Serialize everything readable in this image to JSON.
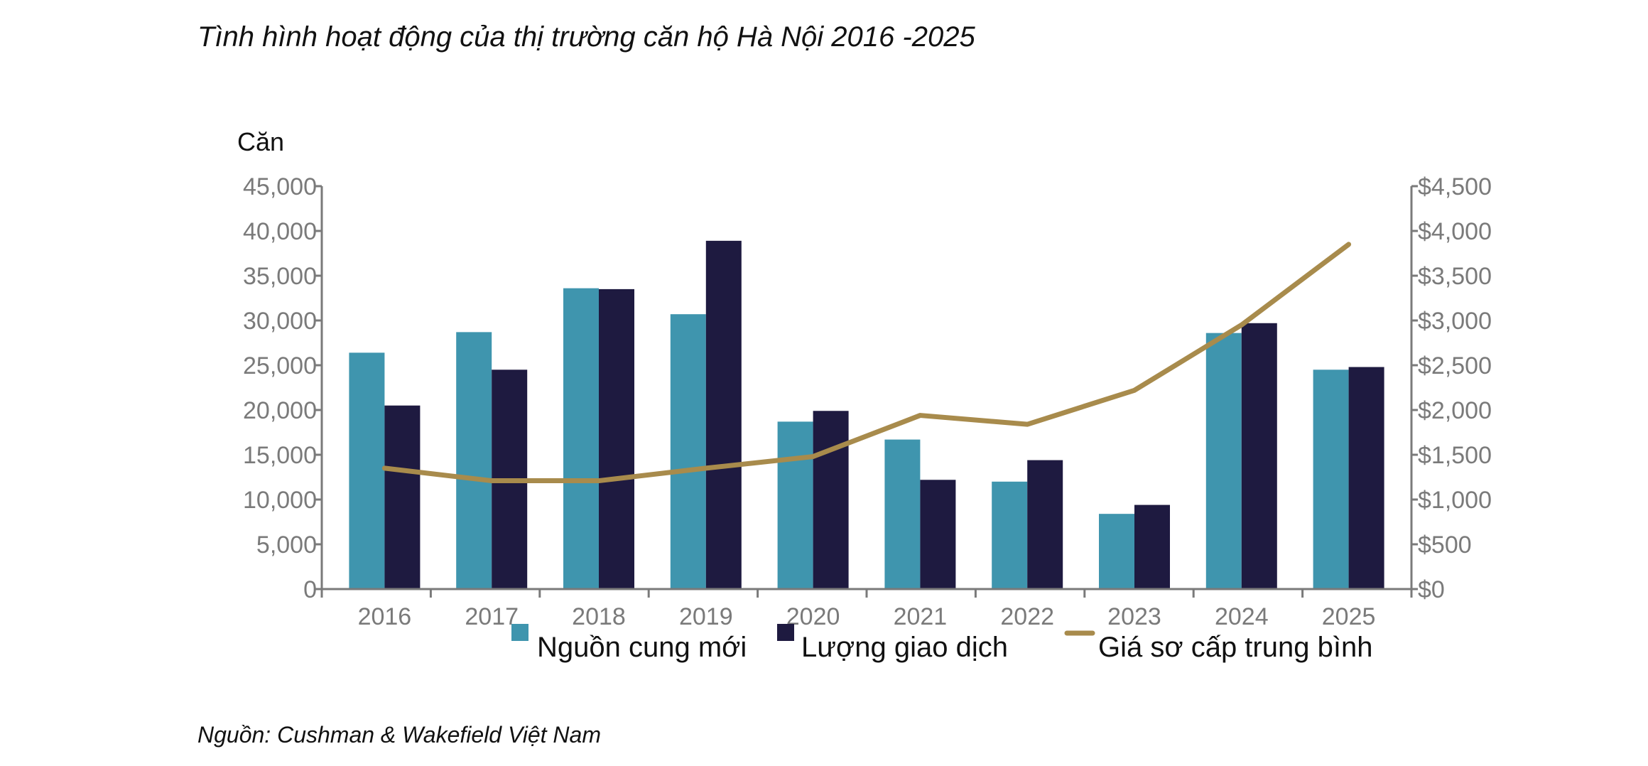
{
  "title": "Tình hình hoạt động của thị trường căn hộ Hà Nội 2016 -2025",
  "source": "Nguồn: Cushman & Wakefield Việt Nam",
  "colors": {
    "supply": "#3f95ae",
    "transactions": "#1e1a40",
    "price": "#a88b4c",
    "axis": "#7a7a7a"
  },
  "chart_data": {
    "type": "bar",
    "title": "Tình hình hoạt động của thị trường căn hộ Hà Nội 2016 -2025",
    "ylabel": "Căn",
    "categories": [
      "2016",
      "2017",
      "2018",
      "2019",
      "2020",
      "2021",
      "2022",
      "2023",
      "2024",
      "2025"
    ],
    "ylim": [
      0,
      45000
    ],
    "y_ticks": [
      "0",
      "5,000",
      "10,000",
      "15,000",
      "20,000",
      "25,000",
      "30,000",
      "35,000",
      "40,000",
      "45,000"
    ],
    "y2lim": [
      0,
      4500
    ],
    "y2_ticks": [
      "$0",
      "$500",
      "$1,000",
      "$1,500",
      "$2,000",
      "$2,500",
      "$3,000",
      "$3,500",
      "$4,000",
      "$4,500"
    ],
    "series": [
      {
        "name": "Nguồn cung mới",
        "type": "bar",
        "axis": "left",
        "values": [
          26400,
          28700,
          33600,
          30700,
          18700,
          16700,
          12000,
          8400,
          28600,
          24500
        ]
      },
      {
        "name": "Lượng giao dịch",
        "type": "bar",
        "axis": "left",
        "values": [
          20500,
          24500,
          33500,
          38900,
          19900,
          12200,
          14400,
          9400,
          29700,
          24800
        ]
      },
      {
        "name": "Giá sơ cấp trung bình",
        "type": "line",
        "axis": "right",
        "values": [
          1350,
          1210,
          1210,
          1350,
          1480,
          1940,
          1840,
          2220,
          2950,
          3850
        ]
      }
    ],
    "legend_position": "bottom",
    "grid": false
  }
}
